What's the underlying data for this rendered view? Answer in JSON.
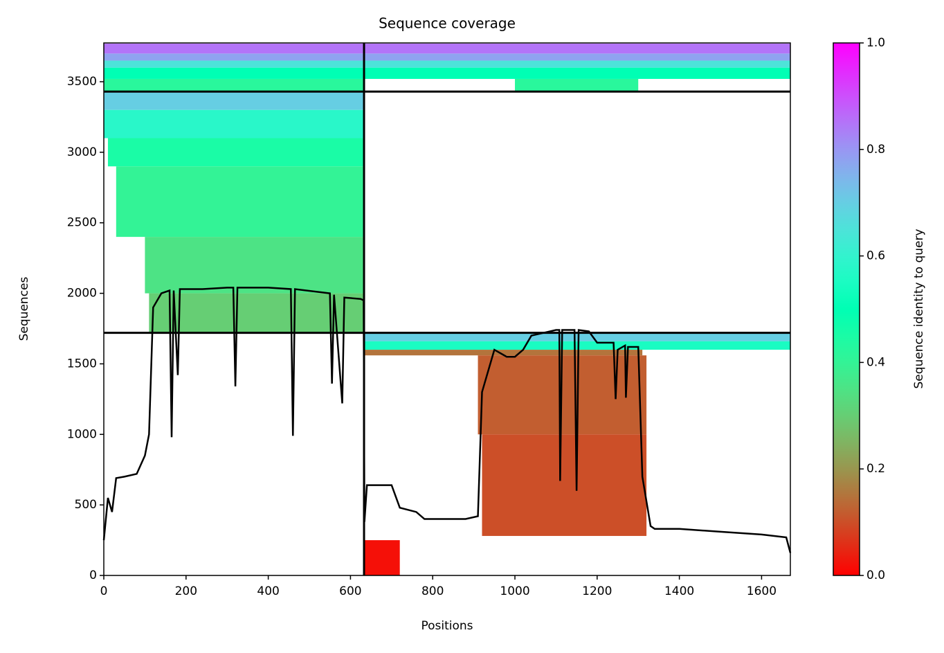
{
  "chart_data": {
    "type": "coverage",
    "title": "Sequence coverage",
    "xlabel": "Positions",
    "ylabel": "Sequences",
    "colorbar_label": "Sequence identity to query",
    "colormap": "rainbow_r",
    "xlim": [
      0,
      1670
    ],
    "xticks": [
      0,
      200,
      400,
      600,
      800,
      1000,
      1200,
      1400,
      1600
    ],
    "ylim": [
      0,
      3775
    ],
    "yticks": [
      0,
      500,
      1000,
      1500,
      2000,
      2500,
      3000,
      3500
    ],
    "clim": [
      0,
      1
    ],
    "cticks": [
      {
        "value": 0,
        "label": "0.0"
      },
      {
        "value": 0.2,
        "label": "0.2"
      },
      {
        "value": 0.4,
        "label": "0.4"
      },
      {
        "value": 0.6,
        "label": "0.6"
      },
      {
        "value": 0.8,
        "label": "0.8"
      },
      {
        "value": 1,
        "label": "1.0"
      }
    ],
    "boundaries": {
      "x": [
        633
      ],
      "y": [
        1720,
        3430
      ]
    },
    "blocks": [
      {
        "x": [
          0,
          633
        ],
        "y": [
          3430,
          3520
        ],
        "identity": 0.42
      },
      {
        "x": [
          0,
          633
        ],
        "y": [
          3520,
          3600
        ],
        "identity": 0.5
      },
      {
        "x": [
          0,
          633
        ],
        "y": [
          3600,
          3650
        ],
        "identity": 0.65
      },
      {
        "x": [
          0,
          633
        ],
        "y": [
          3650,
          3700
        ],
        "identity": 0.78
      },
      {
        "x": [
          0,
          633
        ],
        "y": [
          3700,
          3770
        ],
        "identity": 0.85
      },
      {
        "x": [
          1000,
          1300
        ],
        "y": [
          3430,
          3520
        ],
        "identity": 0.42
      },
      {
        "x": [
          633,
          1670
        ],
        "y": [
          3520,
          3600
        ],
        "identity": 0.5
      },
      {
        "x": [
          633,
          1670
        ],
        "y": [
          3600,
          3650
        ],
        "identity": 0.65
      },
      {
        "x": [
          633,
          1670
        ],
        "y": [
          3650,
          3700
        ],
        "identity": 0.78
      },
      {
        "x": [
          633,
          1670
        ],
        "y": [
          3700,
          3770
        ],
        "identity": 0.85
      },
      {
        "x": [
          0,
          633
        ],
        "y": [
          3300,
          3430
        ],
        "identity": 0.7
      },
      {
        "x": [
          0,
          633
        ],
        "y": [
          3100,
          3300
        ],
        "identity": 0.58
      },
      {
        "x": [
          10,
          633
        ],
        "y": [
          2900,
          3100
        ],
        "identity": 0.45
      },
      {
        "x": [
          30,
          633
        ],
        "y": [
          2400,
          2900
        ],
        "identity": 0.4
      },
      {
        "x": [
          100,
          633
        ],
        "y": [
          2000,
          2400
        ],
        "identity": 0.35
      },
      {
        "x": [
          110,
          633
        ],
        "y": [
          1720,
          2000
        ],
        "identity": 0.3
      },
      {
        "x": [
          633,
          1670
        ],
        "y": [
          1660,
          1720
        ],
        "identity": 0.7
      },
      {
        "x": [
          633,
          1670
        ],
        "y": [
          1600,
          1660
        ],
        "identity": 0.55
      },
      {
        "x": [
          633,
          1310
        ],
        "y": [
          1560,
          1600
        ],
        "identity": 0.15
      },
      {
        "x": [
          910,
          1320
        ],
        "y": [
          1000,
          1560
        ],
        "identity": 0.12
      },
      {
        "x": [
          920,
          1320
        ],
        "y": [
          280,
          1000
        ],
        "identity": 0.1
      },
      {
        "x": [
          633,
          720
        ],
        "y": [
          0,
          250
        ],
        "identity": 0.02
      }
    ],
    "x": [
      0,
      10,
      20,
      30,
      50,
      80,
      100,
      110,
      120,
      130,
      140,
      160,
      165,
      170,
      180,
      185,
      240,
      300,
      315,
      320,
      325,
      400,
      455,
      460,
      465,
      550,
      555,
      560,
      580,
      585,
      625,
      632,
      634,
      640,
      700,
      720,
      760,
      780,
      880,
      910,
      920,
      950,
      980,
      1000,
      1020,
      1040,
      1100,
      1108,
      1110,
      1115,
      1145,
      1150,
      1155,
      1180,
      1200,
      1240,
      1245,
      1250,
      1268,
      1270,
      1275,
      1300,
      1310,
      1330,
      1340,
      1400,
      1500,
      1600,
      1660,
      1670
    ],
    "values": [
      250,
      550,
      450,
      690,
      700,
      720,
      850,
      1000,
      1900,
      1950,
      2000,
      2020,
      980,
      2020,
      1420,
      2030,
      2030,
      2040,
      2040,
      1340,
      2040,
      2040,
      2030,
      990,
      2030,
      2000,
      1360,
      1990,
      1220,
      1970,
      1960,
      1950,
      380,
      640,
      640,
      480,
      450,
      400,
      400,
      420,
      1300,
      1600,
      1550,
      1550,
      1600,
      1700,
      1740,
      1740,
      670,
      1740,
      1740,
      600,
      1740,
      1730,
      1650,
      1650,
      1250,
      1600,
      1630,
      1260,
      1620,
      1620,
      700,
      350,
      330,
      330,
      310,
      290,
      270,
      160
    ]
  }
}
